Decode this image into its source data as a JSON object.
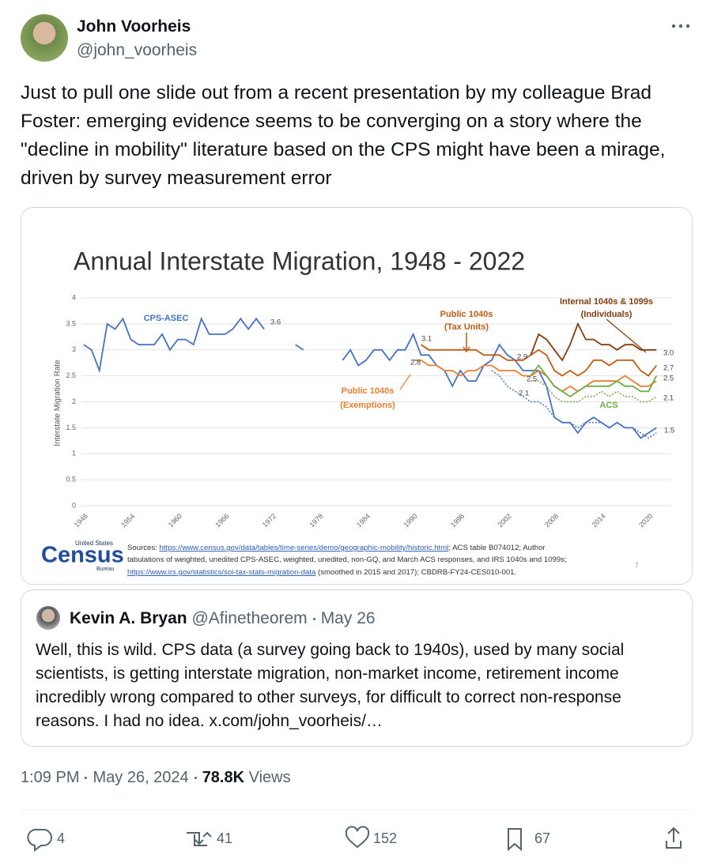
{
  "author": {
    "name": "John Voorheis",
    "handle": "@john_voorheis"
  },
  "text": "Just to pull one slide out from a recent presentation by my colleague Brad Foster: emerging evidence seems to be converging on a story where the \"decline in mobility\" literature based on the CPS might have been a mirage, driven by survey measurement error",
  "chart_data": {
    "type": "line",
    "title": "Annual Interstate Migration, 1948 - 2022",
    "y_label": "Interstate Migration Rate",
    "xlim": [
      1946,
      2023
    ],
    "xticks": [
      1948,
      1954,
      1960,
      1966,
      1972,
      1978,
      1984,
      1990,
      1996,
      2002,
      2008,
      2014,
      2020
    ],
    "ylim": [
      0,
      4
    ],
    "yticks": [
      0,
      0.5,
      1,
      1.5,
      2,
      2.5,
      3,
      3.5,
      4
    ],
    "grid": true,
    "series": [
      {
        "name": "CPS-ASEC",
        "color": "#4472c4",
        "x": [
          1948,
          1949,
          1950,
          1951,
          1952,
          1953,
          1954,
          1955,
          1956,
          1957,
          1958,
          1959,
          1960,
          1961,
          1962,
          1963,
          1964,
          1965,
          1966,
          1967,
          1968,
          1969,
          1970,
          1971,
          1972,
          1975,
          1976,
          1977,
          1981,
          1982,
          1983,
          1984,
          1985,
          1986,
          1987,
          1988,
          1989,
          1990,
          1991,
          1992,
          1993,
          1994,
          1995,
          1996,
          1997,
          1998,
          1999,
          2000,
          2001,
          2002,
          2003,
          2004,
          2005,
          2006,
          2007,
          2008,
          2009,
          2010,
          2011,
          2012,
          2013,
          2014,
          2015,
          2016,
          2017,
          2018,
          2019,
          2020,
          2021
        ],
        "values": [
          3.1,
          3.0,
          2.6,
          3.5,
          3.4,
          3.6,
          3.2,
          3.1,
          3.1,
          3.1,
          3.3,
          3.0,
          3.2,
          3.2,
          3.1,
          3.6,
          3.3,
          3.3,
          3.3,
          3.4,
          3.6,
          3.4,
          3.6,
          3.4,
          null,
          3.1,
          3.0,
          null,
          2.8,
          3.0,
          2.7,
          2.8,
          3.0,
          3.0,
          2.8,
          3.0,
          3.0,
          3.3,
          2.9,
          2.9,
          2.7,
          2.6,
          2.3,
          2.6,
          2.4,
          2.4,
          2.7,
          2.8,
          3.1,
          2.9,
          2.8,
          2.6,
          2.6,
          2.6,
          2.3,
          1.7,
          1.6,
          1.6,
          1.4,
          1.6,
          1.7,
          1.6,
          1.5,
          1.6,
          1.5,
          1.5,
          1.3,
          1.4,
          1.5
        ]
      },
      {
        "name": [
          "Public 1040s",
          "(Tax Units)"
        ],
        "color": "#c55a11",
        "x": [
          1991,
          1992,
          1993,
          1994,
          1995,
          1996,
          1997,
          1998,
          1999,
          2000,
          2001,
          2002,
          2003,
          2004,
          2005,
          2006,
          2007,
          2008,
          2009,
          2010,
          2011,
          2012,
          2013,
          2014,
          2015,
          2016,
          2017,
          2018,
          2019,
          2020,
          2021
        ],
        "values": [
          3.1,
          3.0,
          3.0,
          3.0,
          3.0,
          3.0,
          3.0,
          3.0,
          2.9,
          2.9,
          2.9,
          2.8,
          2.8,
          2.8,
          2.9,
          3.0,
          2.9,
          2.6,
          2.5,
          2.6,
          2.5,
          2.6,
          2.8,
          2.8,
          2.7,
          2.8,
          2.8,
          2.8,
          2.6,
          2.5,
          2.7
        ]
      },
      {
        "name": [
          "Public 1040s",
          "(Exemptions)"
        ],
        "color": "#ed7d31",
        "x": [
          1990,
          1991,
          1992,
          1993,
          1994,
          1995,
          1996,
          1997,
          1998,
          1999,
          2000,
          2001,
          2002,
          2003,
          2004,
          2005,
          2006,
          2007,
          2008,
          2009,
          2010,
          2011,
          2012,
          2013,
          2014,
          2015,
          2016,
          2017,
          2018,
          2019,
          2020,
          2021
        ],
        "values": [
          2.8,
          2.8,
          2.7,
          2.7,
          2.6,
          2.6,
          2.5,
          2.6,
          2.6,
          2.7,
          2.7,
          2.6,
          2.6,
          2.6,
          2.5,
          2.5,
          2.6,
          2.5,
          2.3,
          2.2,
          2.3,
          2.2,
          2.3,
          2.4,
          2.4,
          2.4,
          2.4,
          2.5,
          2.4,
          2.3,
          2.3,
          2.4
        ]
      },
      {
        "name": [
          "Internal 1040s & 1099s",
          "(Individuals)"
        ],
        "color": "#843c0c",
        "x": [
          2005,
          2006,
          2007,
          2008,
          2009,
          2010,
          2011,
          2012,
          2013,
          2014,
          2015,
          2016,
          2017,
          2018,
          2019,
          2020,
          2021
        ],
        "values": [
          2.9,
          3.3,
          3.2,
          3.0,
          2.8,
          3.1,
          3.5,
          3.2,
          3.2,
          3.1,
          3.1,
          3.0,
          3.1,
          3.1,
          3.0,
          3.0,
          3.0
        ]
      },
      {
        "name": "ACS",
        "color": "#70ad47",
        "x": [
          2005,
          2006,
          2007,
          2008,
          2009,
          2010,
          2011,
          2012,
          2013,
          2014,
          2015,
          2016,
          2017,
          2018,
          2019,
          2020,
          2021
        ],
        "values": [
          2.5,
          2.7,
          2.5,
          2.3,
          2.2,
          2.1,
          2.2,
          2.3,
          2.3,
          2.3,
          2.3,
          2.4,
          2.3,
          2.3,
          2.2,
          2.2,
          2.5
        ]
      },
      {
        "color": "#70ad47",
        "dashed": true,
        "x": [
          2005,
          2006,
          2007,
          2008,
          2009,
          2010,
          2011,
          2012,
          2013,
          2014,
          2015,
          2016,
          2017,
          2018,
          2019,
          2020,
          2021
        ],
        "values": [
          2.4,
          2.4,
          2.3,
          2.1,
          2.0,
          2.0,
          2.0,
          2.1,
          2.1,
          2.2,
          2.1,
          2.2,
          2.1,
          2.1,
          2.0,
          2.0,
          2.1
        ]
      },
      {
        "color": "#4472c4",
        "dashed": true,
        "x": [
          2000,
          2001,
          2002,
          2003,
          2004,
          2005,
          2006,
          2007,
          2008,
          2009,
          2010,
          2011,
          2012,
          2013,
          2014,
          2015,
          2016,
          2017,
          2018,
          2019,
          2020,
          2021
        ],
        "values": [
          2.6,
          2.5,
          2.3,
          2.2,
          2.1,
          2.0,
          2.0,
          1.9,
          1.7,
          1.6,
          1.6,
          1.5,
          1.6,
          1.6,
          1.6,
          1.5,
          1.6,
          1.5,
          1.5,
          1.4,
          1.3,
          1.4
        ]
      }
    ],
    "annotations": [
      "3.6",
      "3.1",
      "2.8",
      "2.9",
      "2.5",
      "2.1",
      "3.0",
      "2.7",
      "2.5",
      "2.1",
      "1.5"
    ]
  },
  "slide": {
    "logo": [
      "United States",
      "Census",
      "Bureau"
    ],
    "sources": [
      [
        "Sources: ",
        "https://www.census.gov/data/tables/time-series/demo/geographic-mobility/historic.html",
        "; ACS table B074012; Author"
      ],
      [
        "tabulations of weighted, unedited CPS-ASEC, weighted, unedited, non-GQ, and March ACS responses, and IRS 1040s and 1099s;"
      ],
      [
        "https://www.irs.gov/statistics/soi-tax-stats-migration-data",
        " (smoothed in 2015 and 2017); CBDRB-FY24-CES010-001."
      ]
    ],
    "page_number": "7"
  },
  "quote": {
    "name": "Kevin A. Bryan",
    "handle": "@Afinetheorem",
    "date": "May 26",
    "text": "Well, this is wild. CPS data (a survey going back to 1940s), used by many social scientists, is getting interstate migration, non-market income, retirement income incredibly wrong compared to other surveys, for difficult to correct non-response reasons.  I had no idea. x.com/john_voorheis/…"
  },
  "meta": {
    "time": "1:09 PM",
    "date": "May 26, 2024",
    "views": "78.8K",
    "views_label": "Views"
  },
  "actions": {
    "replies": "4",
    "reposts": "41",
    "likes": "152",
    "bookmarks": "67"
  }
}
